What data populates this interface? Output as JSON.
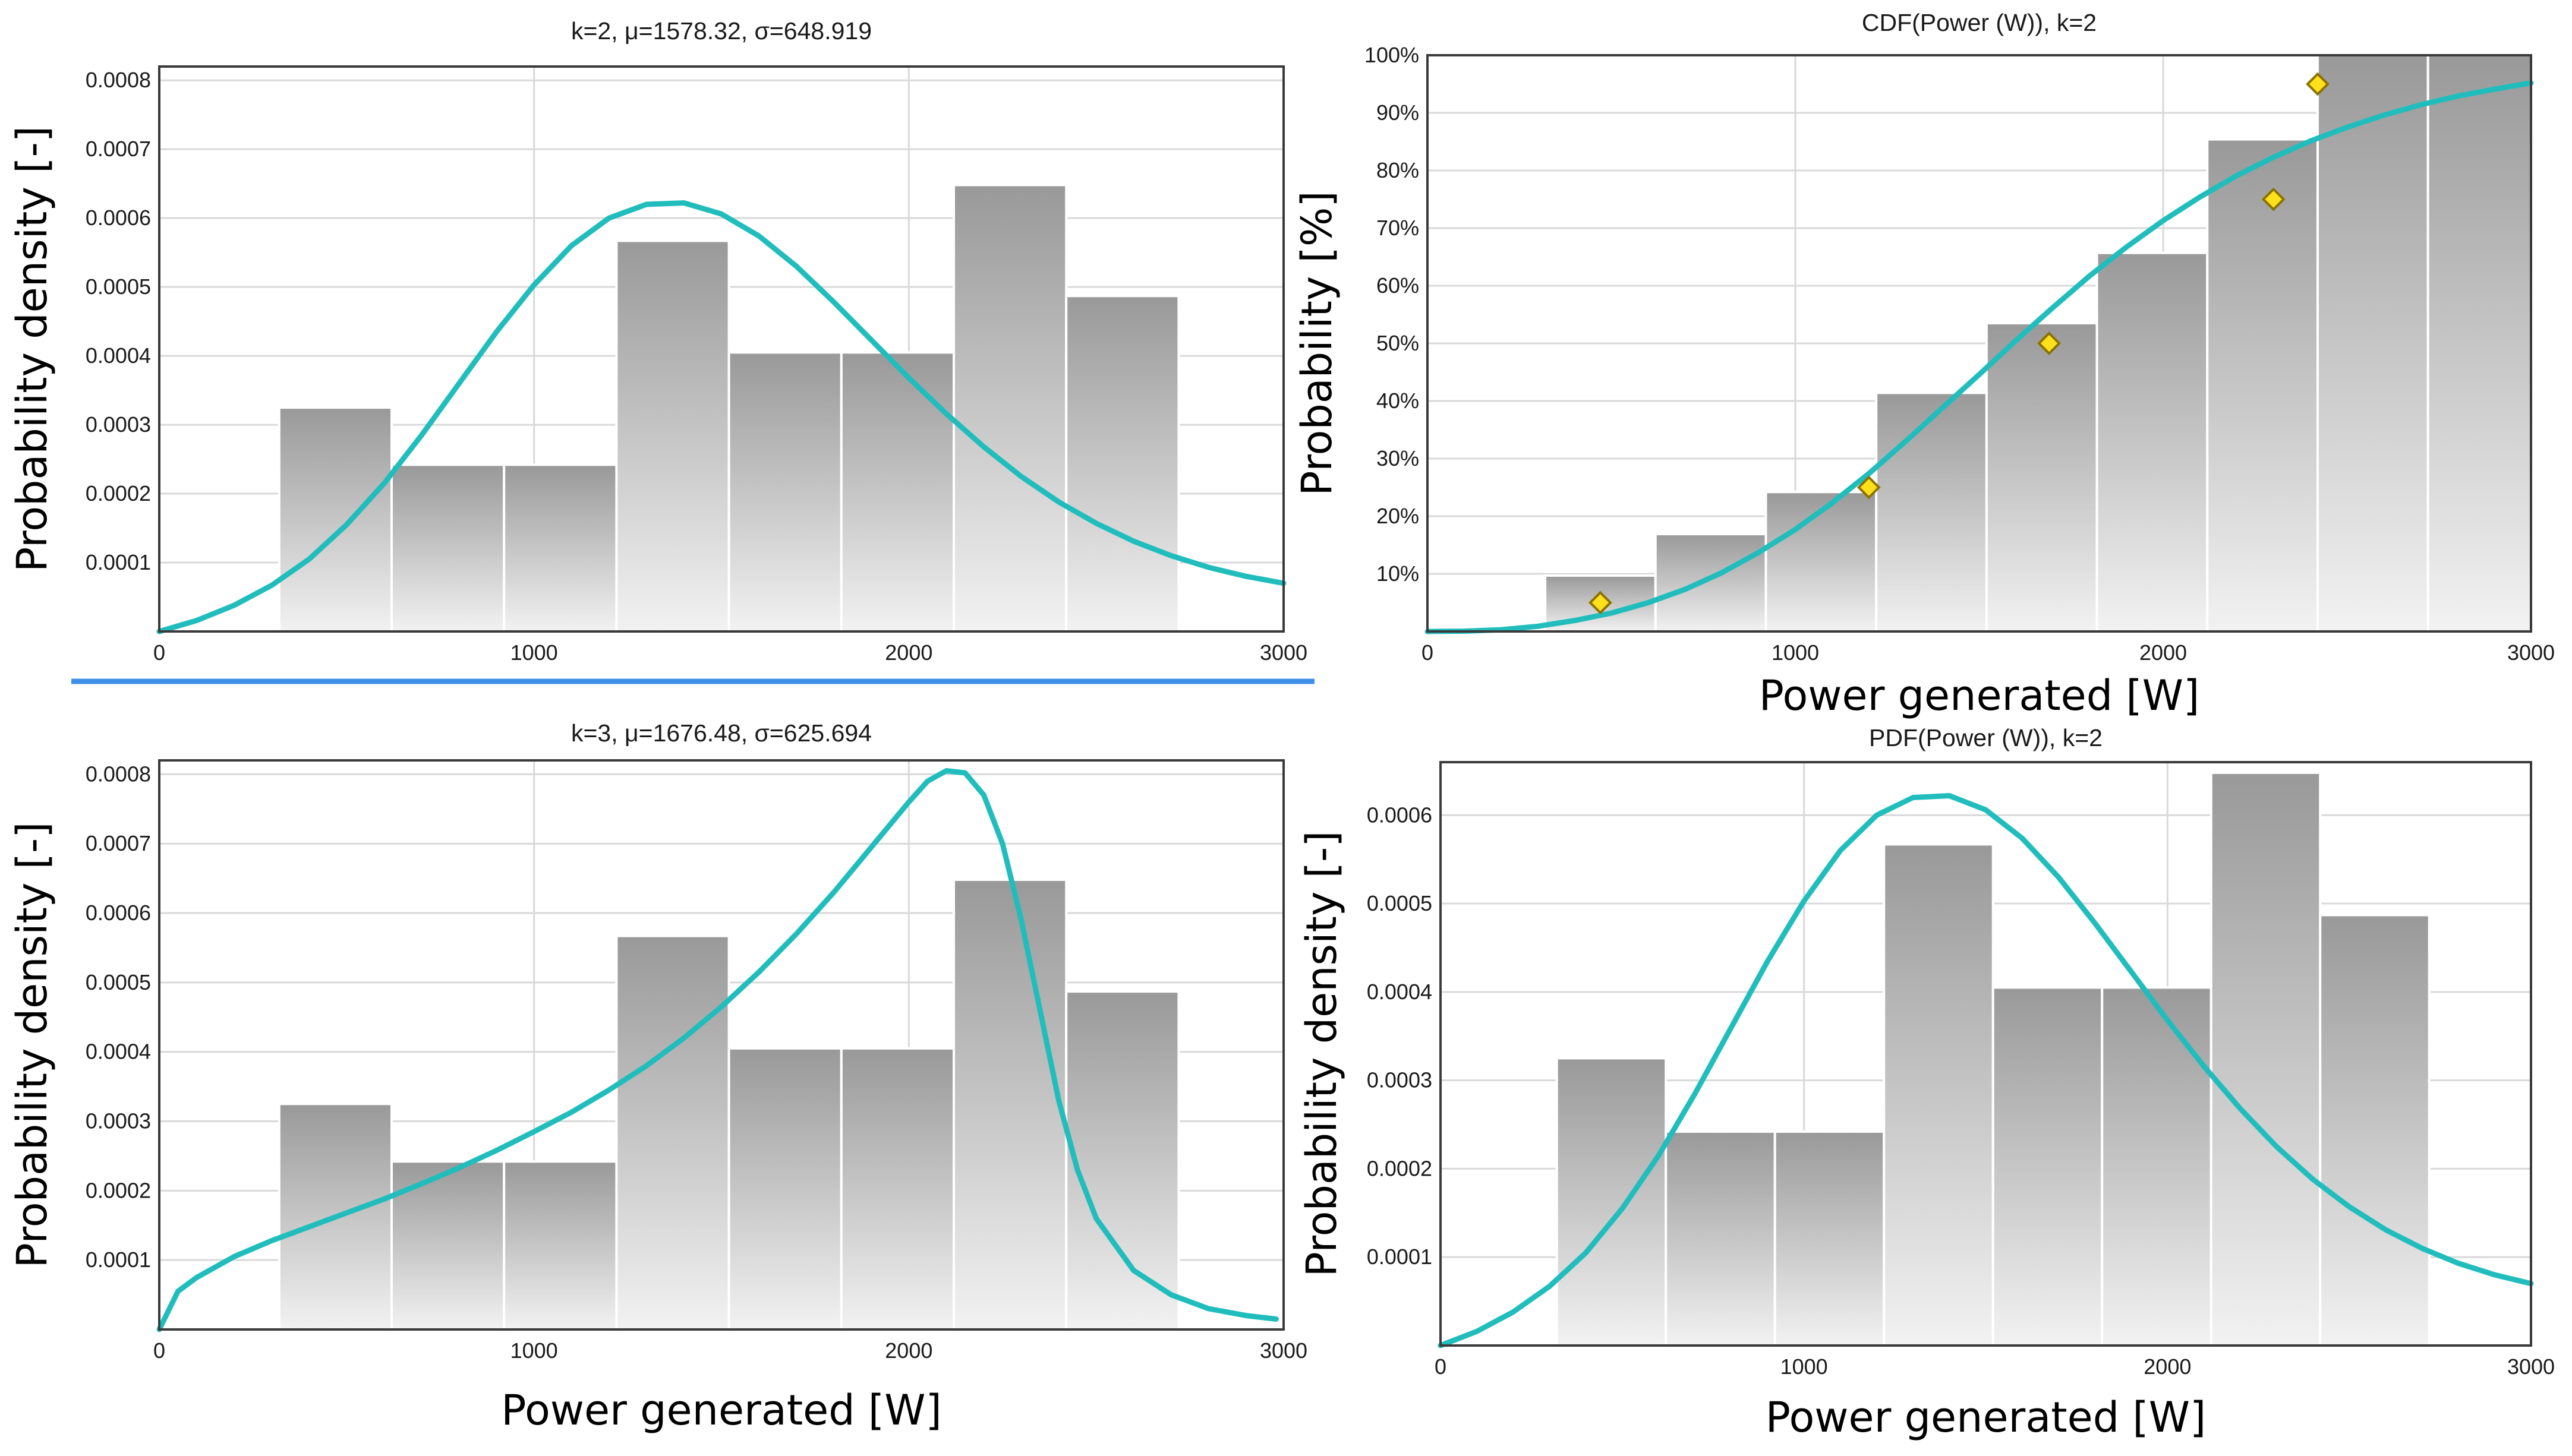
{
  "colors": {
    "curve": "#21bdbd",
    "bar_top": "#999999",
    "bar_bottom": "#f2f2f2",
    "marker": "#ffe01a",
    "separator": "#3d8fe8"
  },
  "chart_data": [
    {
      "id": "pdf-k2",
      "type": "bar",
      "title": "k=2, μ=1578.32, σ=648.919",
      "xlabel": "",
      "ylabel": "Probability density [-]",
      "xlim": [
        0,
        3000
      ],
      "ylim": [
        0,
        0.00082
      ],
      "xticks": [
        0,
        1000,
        2000,
        3000
      ],
      "xtick_labels": [
        "0",
        "1000",
        "2000",
        "3000"
      ],
      "yticks": [
        0.0001,
        0.0002,
        0.0003,
        0.0004,
        0.0005,
        0.0006,
        0.0007,
        0.0008
      ],
      "ytick_labels": [
        "0.0001",
        "0.0002",
        "0.0003",
        "0.0004",
        "0.0005",
        "0.0006",
        "0.0007",
        "0.0008"
      ],
      "bar_edges": [
        320,
        620,
        920,
        1220,
        1520,
        1820,
        2120,
        2420,
        2720
      ],
      "bar_values": [
        0.000325,
        0.000242,
        0.000242,
        0.000567,
        0.000405,
        0.000405,
        0.000648,
        0.000487
      ],
      "curve": {
        "name": "fitted PDF",
        "x": [
          0,
          100,
          200,
          300,
          400,
          500,
          600,
          700,
          800,
          900,
          1000,
          1100,
          1200,
          1300,
          1400,
          1500,
          1600,
          1700,
          1800,
          1900,
          2000,
          2100,
          2200,
          2300,
          2400,
          2500,
          2600,
          2700,
          2800,
          2900,
          3000
        ],
        "y": [
          0.0,
          1.6e-05,
          3.8e-05,
          6.7e-05,
          0.000105,
          0.000155,
          0.000215,
          0.000285,
          0.00036,
          0.000435,
          0.000503,
          0.00056,
          0.0006,
          0.00062,
          0.000622,
          0.000606,
          0.000574,
          0.00053,
          0.000478,
          0.000423,
          0.000368,
          0.000316,
          0.000268,
          0.000225,
          0.000188,
          0.000157,
          0.000131,
          0.00011,
          9.3e-05,
          8e-05,
          7e-05
        ]
      }
    },
    {
      "id": "cdf-k2",
      "type": "bar",
      "title": "CDF(Power (W)), k=2",
      "xlabel": "Power generated [W]",
      "ylabel": "Probability [%]",
      "xlim": [
        0,
        3000
      ],
      "ylim": [
        0,
        100
      ],
      "xticks": [
        0,
        1000,
        2000,
        3000
      ],
      "xtick_labels": [
        "0",
        "1000",
        "2000",
        "3000"
      ],
      "yticks": [
        10,
        20,
        30,
        40,
        50,
        60,
        70,
        80,
        90,
        100
      ],
      "ytick_labels": [
        "10%",
        "20%",
        "30%",
        "40%",
        "50%",
        "60%",
        "70%",
        "80%",
        "90%",
        "100%"
      ],
      "bar_edges": [
        320,
        620,
        920,
        1220,
        1520,
        1820,
        2120,
        2420,
        2720,
        3000
      ],
      "bar_values": [
        9.7,
        16.9,
        24.2,
        41.4,
        53.5,
        65.7,
        85.4,
        100,
        100
      ],
      "points": {
        "name": "empirical CDF",
        "x": [
          470,
          1200,
          1690,
          2300,
          2420
        ],
        "y": [
          5,
          25,
          50,
          75,
          95
        ]
      },
      "curve": {
        "name": "fitted CDF",
        "x": [
          0,
          100,
          200,
          300,
          400,
          500,
          600,
          700,
          800,
          900,
          1000,
          1100,
          1200,
          1300,
          1400,
          1500,
          1600,
          1700,
          1800,
          1900,
          2000,
          2100,
          2200,
          2300,
          2400,
          2500,
          2600,
          2700,
          2800,
          2900,
          3000
        ],
        "y": [
          0.0,
          0.05,
          0.3,
          0.9,
          1.9,
          3.2,
          5.0,
          7.3,
          10.2,
          13.7,
          17.7,
          22.3,
          27.4,
          33.0,
          38.8,
          44.6,
          50.5,
          56.2,
          61.7,
          66.7,
          71.3,
          75.4,
          79.1,
          82.3,
          85.1,
          87.5,
          89.6,
          91.4,
          92.9,
          94.1,
          95.2
        ]
      }
    },
    {
      "id": "pdf-k3",
      "type": "bar",
      "title": "k=3, μ=1676.48, σ=625.694",
      "xlabel": "Power generated [W]",
      "ylabel": "Probability density [-]",
      "xlim": [
        0,
        3000
      ],
      "ylim": [
        0,
        0.00082
      ],
      "xticks": [
        0,
        1000,
        2000,
        3000
      ],
      "xtick_labels": [
        "0",
        "1000",
        "2000",
        "3000"
      ],
      "yticks": [
        0.0001,
        0.0002,
        0.0003,
        0.0004,
        0.0005,
        0.0006,
        0.0007,
        0.0008
      ],
      "ytick_labels": [
        "0.0001",
        "0.0002",
        "0.0003",
        "0.0004",
        "0.0005",
        "0.0006",
        "0.0007",
        "0.0008"
      ],
      "bar_edges": [
        320,
        620,
        920,
        1220,
        1520,
        1820,
        2120,
        2420,
        2720
      ],
      "bar_values": [
        0.000325,
        0.000242,
        0.000242,
        0.000567,
        0.000405,
        0.000405,
        0.000648,
        0.000487
      ],
      "curve": {
        "name": "fitted PDF",
        "x": [
          0,
          50,
          100,
          200,
          300,
          400,
          500,
          600,
          700,
          800,
          900,
          1000,
          1100,
          1200,
          1300,
          1400,
          1500,
          1600,
          1700,
          1800,
          1900,
          2000,
          2050,
          2100,
          2150,
          2200,
          2250,
          2300,
          2350,
          2400,
          2450,
          2500,
          2600,
          2700,
          2800,
          2900,
          2980
        ],
        "y": [
          0.0,
          5.5e-05,
          7.5e-05,
          0.000105,
          0.000128,
          0.000148,
          0.000168,
          0.000188,
          0.00021,
          0.000233,
          0.000258,
          0.000285,
          0.000313,
          0.000345,
          0.00038,
          0.00042,
          0.000465,
          0.000515,
          0.00057,
          0.00063,
          0.000695,
          0.00076,
          0.00079,
          0.000805,
          0.000802,
          0.00077,
          0.0007,
          0.00059,
          0.00046,
          0.00033,
          0.00023,
          0.00016,
          8.5e-05,
          5e-05,
          3e-05,
          2e-05,
          1.5e-05
        ]
      }
    },
    {
      "id": "pdf-k2-b",
      "type": "bar",
      "title": "PDF(Power (W)), k=2",
      "xlabel": "Power generated [W]",
      "ylabel": "Probability density [-]",
      "xlim": [
        0,
        3000
      ],
      "ylim": [
        0,
        0.00066
      ],
      "xticks": [
        0,
        1000,
        2000,
        3000
      ],
      "xtick_labels": [
        "0",
        "1000",
        "2000",
        "3000"
      ],
      "yticks": [
        0.0001,
        0.0002,
        0.0003,
        0.0004,
        0.0005,
        0.0006
      ],
      "ytick_labels": [
        "0.0001",
        "0.0002",
        "0.0003",
        "0.0004",
        "0.0005",
        "0.0006"
      ],
      "bar_edges": [
        320,
        620,
        920,
        1220,
        1520,
        1820,
        2120,
        2420,
        2720
      ],
      "bar_values": [
        0.000325,
        0.000242,
        0.000242,
        0.000567,
        0.000405,
        0.000405,
        0.000648,
        0.000487
      ],
      "curve": {
        "name": "fitted PDF",
        "x": [
          0,
          100,
          200,
          300,
          400,
          500,
          600,
          700,
          800,
          900,
          1000,
          1100,
          1200,
          1300,
          1400,
          1500,
          1600,
          1700,
          1800,
          1900,
          2000,
          2100,
          2200,
          2300,
          2400,
          2500,
          2600,
          2700,
          2800,
          2900,
          3000
        ],
        "y": [
          0.0,
          1.6e-05,
          3.8e-05,
          6.7e-05,
          0.000105,
          0.000155,
          0.000215,
          0.000285,
          0.00036,
          0.000435,
          0.000503,
          0.00056,
          0.0006,
          0.00062,
          0.000622,
          0.000606,
          0.000574,
          0.00053,
          0.000478,
          0.000423,
          0.000368,
          0.000316,
          0.000268,
          0.000225,
          0.000188,
          0.000157,
          0.000131,
          0.00011,
          9.3e-05,
          8e-05,
          7e-05
        ]
      }
    }
  ]
}
